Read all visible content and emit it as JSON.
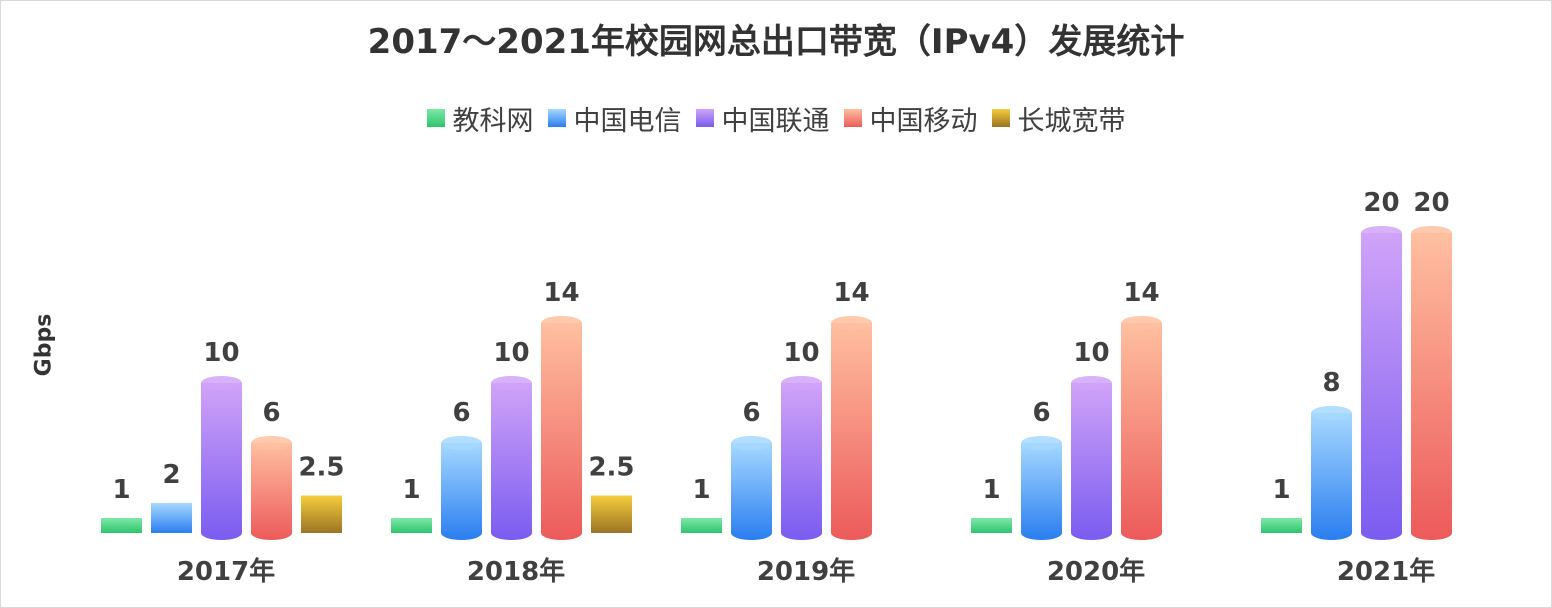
{
  "chart_data": {
    "type": "bar",
    "title": "2017～2021年校园网总出口带宽（IPv4）发展统计",
    "ylabel": "Gbps",
    "xlabel": "",
    "categories": [
      "2017年",
      "2018年",
      "2019年",
      "2020年",
      "2021年"
    ],
    "ylim": [
      0,
      20
    ],
    "grid": false,
    "legend_position": "top",
    "series": [
      {
        "name": "教科网",
        "values": [
          1,
          1,
          1,
          1,
          1
        ],
        "color_top": "#7ee8a8",
        "color_bottom": "#2ec46c"
      },
      {
        "name": "中国电信",
        "values": [
          2,
          6,
          6,
          6,
          8
        ],
        "color_top": "#a6d8ff",
        "color_bottom": "#2a7ef0"
      },
      {
        "name": "中国联通",
        "values": [
          10,
          10,
          10,
          10,
          20
        ],
        "color_top": "#d0a3f8",
        "color_bottom": "#7a5cf0"
      },
      {
        "name": "中国移动",
        "values": [
          6,
          14,
          14,
          14,
          20
        ],
        "color_top": "#ffbfa0",
        "color_bottom": "#ec5a5a"
      },
      {
        "name": "长城宽带",
        "values": [
          2.5,
          2.5,
          null,
          null,
          null
        ],
        "color_top": "#f5cd3c",
        "color_bottom": "#9a7424"
      }
    ],
    "data_labels": true
  }
}
